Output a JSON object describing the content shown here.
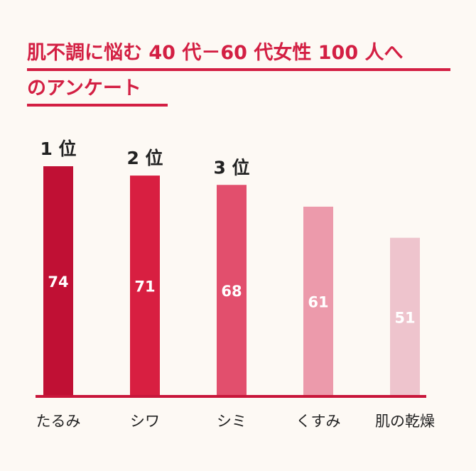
{
  "header": {
    "title_line1": "肌不調に悩む 40 代－60 代女性 100 人へ",
    "title_line2": "のアンケート"
  },
  "chart_data": {
    "type": "bar",
    "title": "肌不調に悩む 40 代－60 代女性 100 人へのアンケート",
    "categories": [
      "たるみ",
      "シワ",
      "シミ",
      "くすみ",
      "肌の乾燥"
    ],
    "values": [
      74,
      71,
      68,
      61,
      51
    ],
    "ranks": [
      "1 位",
      "2 位",
      "3 位",
      "",
      ""
    ],
    "colors": [
      "#c01034",
      "#d81f41",
      "#e24f6d",
      "#ec9aab",
      "#eec4cd"
    ],
    "axis_color": "#c8163a",
    "ylim": [
      0,
      74
    ],
    "xlabel": "",
    "ylabel": "",
    "grid": false,
    "legend": "none"
  }
}
